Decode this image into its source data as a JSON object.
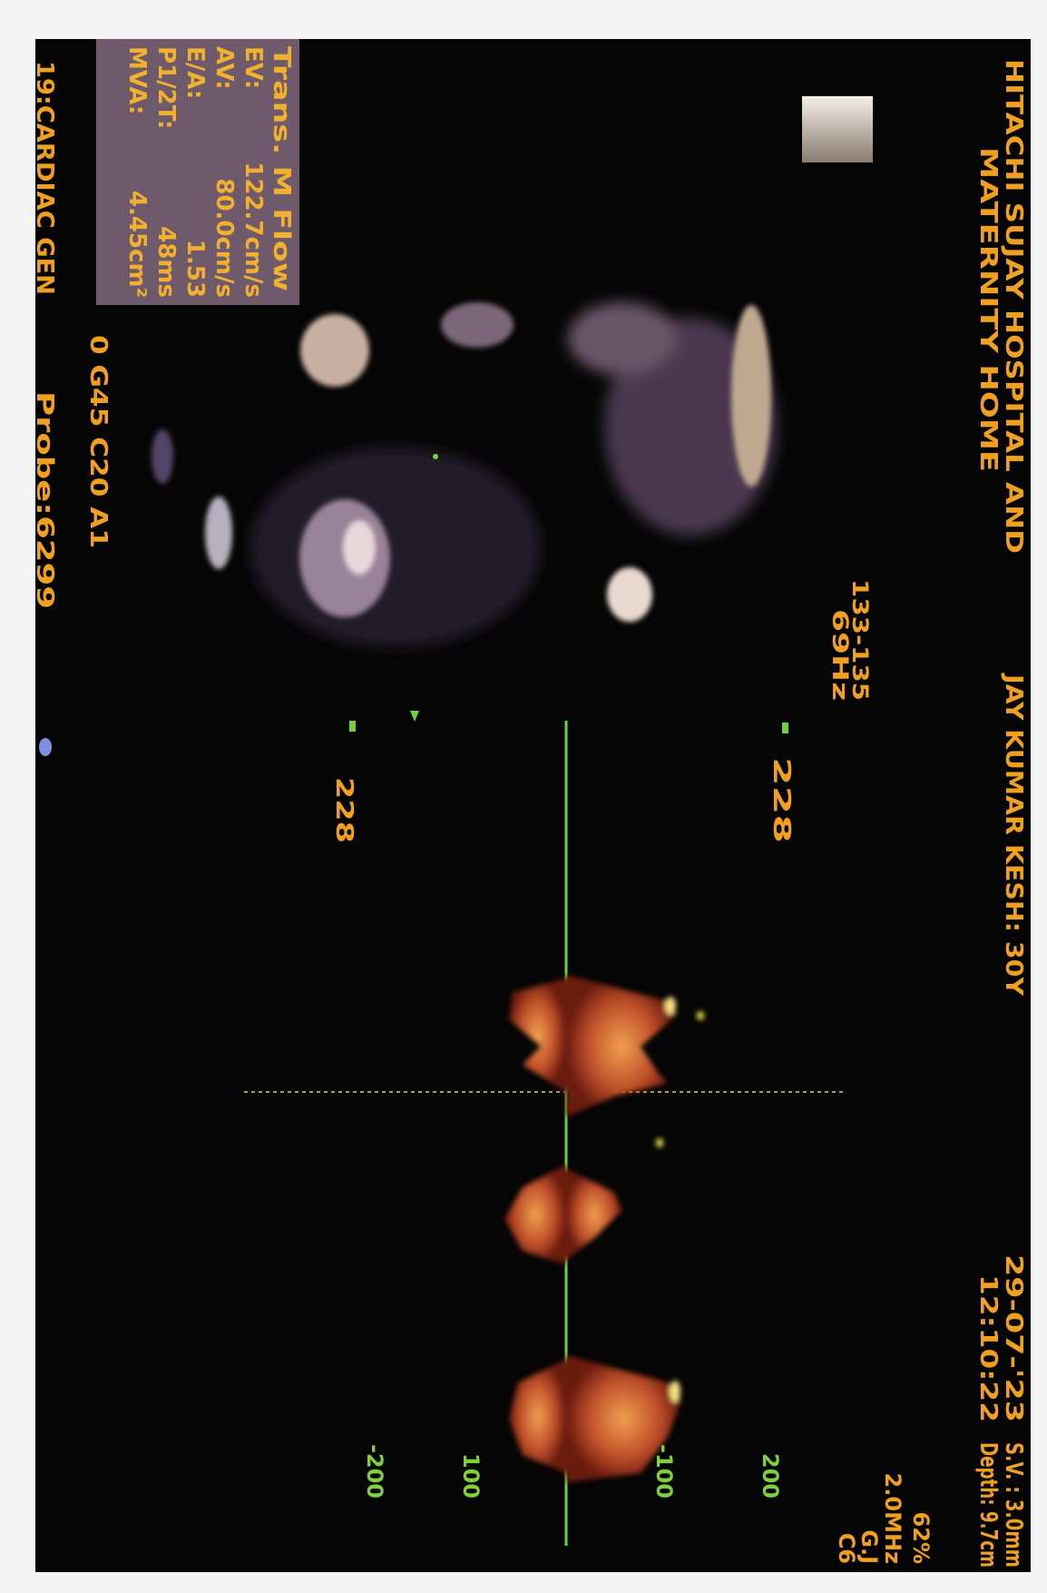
{
  "header": {
    "line1": "HITACHI SUJAY HOSPITAL AND",
    "line2": "MATERNITY HOME",
    "patient": "JAY KUMAR KESH: 30Y",
    "date": "29-07-'23",
    "time": "12:10:22",
    "sample_volume": "S.V. : 3.0mm",
    "depth": "Depth: 9.7cm"
  },
  "settings": [
    "62%",
    "2.0MHz",
    "G.J",
    "C6"
  ],
  "doppler": {
    "heart_rate": "133-135",
    "prf": "69Hz",
    "marker_top": "228",
    "marker_bottom": "228",
    "scale": [
      "200",
      "-100",
      "100",
      "-200"
    ]
  },
  "panel": {
    "title": "Trans. M Flow",
    "rows": [
      [
        "EV:",
        "122.7cm/s"
      ],
      [
        "AV:",
        "80.0cm/s"
      ],
      [
        "E/A:",
        "1.53"
      ],
      [
        "P1/2T:",
        "48ms"
      ],
      [
        "MVA:",
        "4.45cm²"
      ]
    ]
  },
  "footer": {
    "gain": "0 G45 C20 A1",
    "preset": "19:CARDIAC GEN",
    "probe": "Probe:6299"
  }
}
